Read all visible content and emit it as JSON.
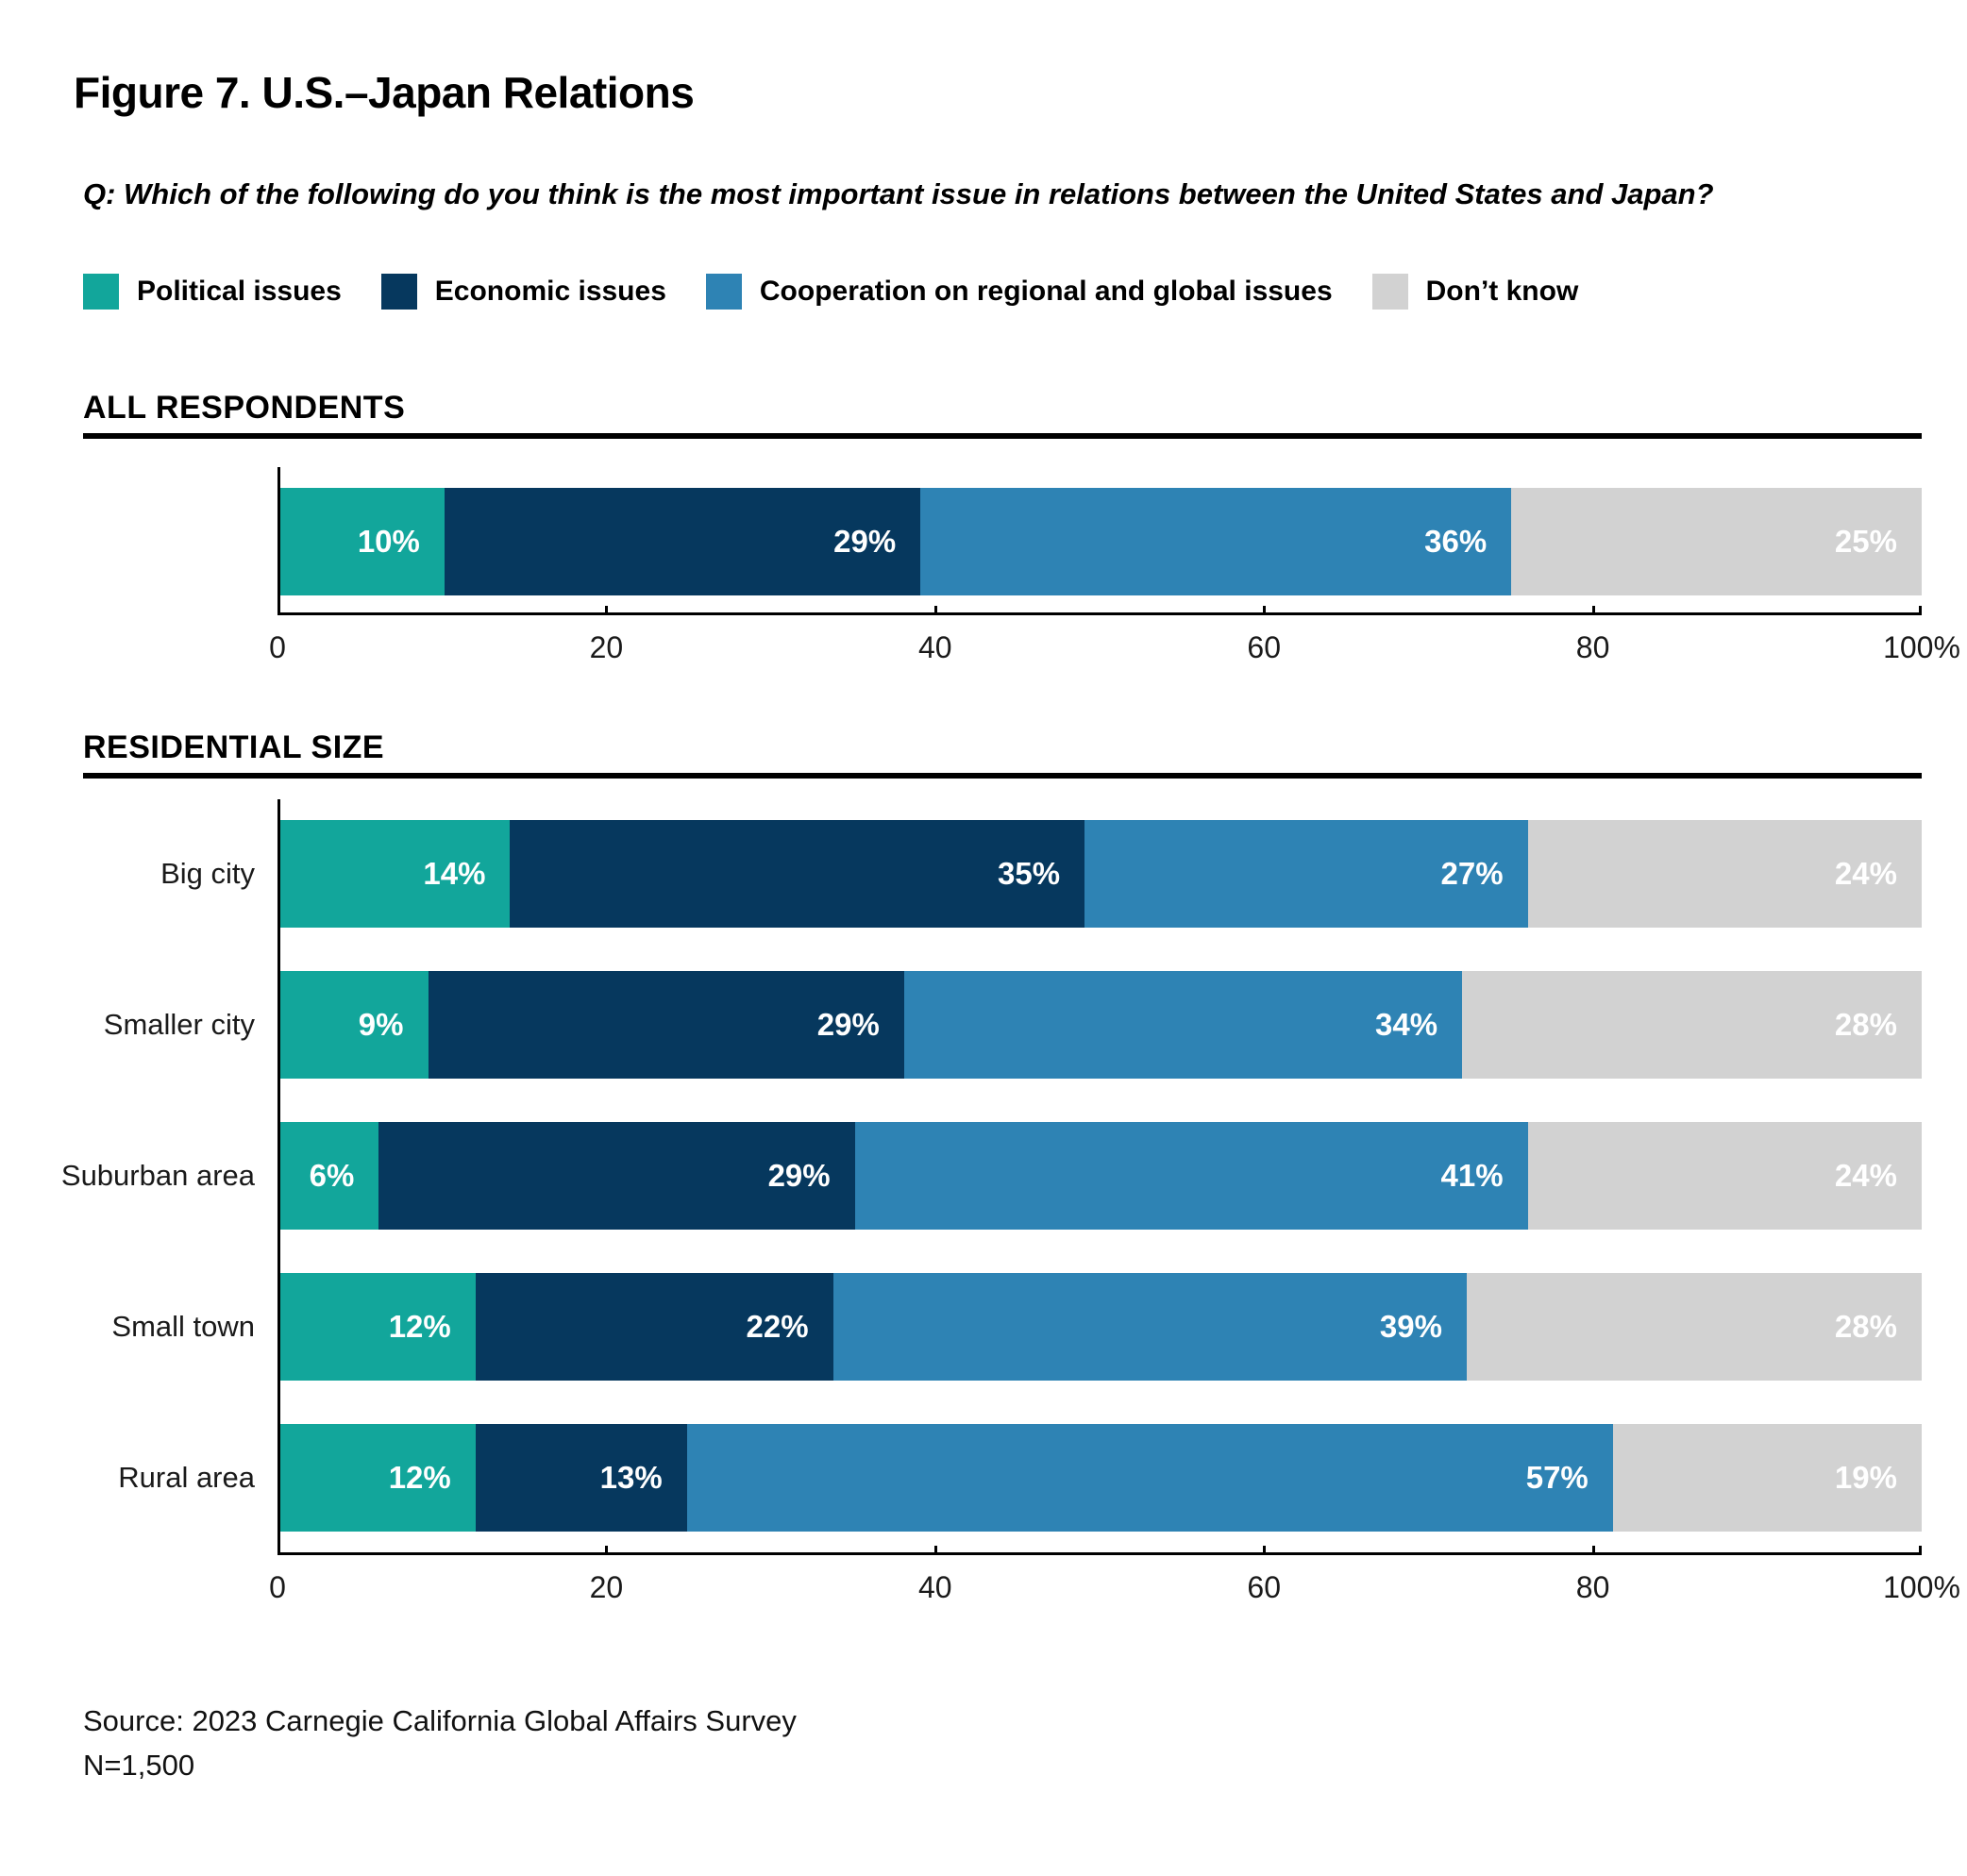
{
  "title": "Figure 7. U.S.–Japan Relations",
  "question": "Q: Which of the following do you think is the most important issue in relations between the United States and Japan?",
  "colors": {
    "political": "#12A69B",
    "economic": "#06385E",
    "cooperation": "#2E83B4",
    "dont_know": "#D2D2D2",
    "rule": "#000000"
  },
  "legend": [
    {
      "label": "Political issues",
      "color": "#12A69B"
    },
    {
      "label": "Economic issues",
      "color": "#06385E"
    },
    {
      "label": "Cooperation on regional and global issues",
      "color": "#2E83B4"
    },
    {
      "label": "Don’t know",
      "color": "#D2D2D2"
    }
  ],
  "chart_data": [
    {
      "type": "bar",
      "stacked": true,
      "orientation": "horizontal",
      "section": "ALL RESPONDENTS",
      "categories": [
        ""
      ],
      "series": [
        {
          "name": "Political issues",
          "color": "#12A69B",
          "values": [
            10
          ]
        },
        {
          "name": "Economic issues",
          "color": "#06385E",
          "values": [
            29
          ]
        },
        {
          "name": "Cooperation on regional and global issues",
          "color": "#2E83B4",
          "values": [
            36
          ]
        },
        {
          "name": "Don’t know",
          "color": "#D2D2D2",
          "values": [
            25
          ]
        }
      ],
      "xlim": [
        0,
        100
      ],
      "x_ticks": [
        "0",
        "20",
        "40",
        "60",
        "80",
        "100%"
      ],
      "value_suffix": "%"
    },
    {
      "type": "bar",
      "stacked": true,
      "orientation": "horizontal",
      "section": "RESIDENTIAL SIZE",
      "categories": [
        "Big city",
        "Smaller city",
        "Suburban area",
        "Small town",
        "Rural area"
      ],
      "series": [
        {
          "name": "Political issues",
          "color": "#12A69B",
          "values": [
            14,
            9,
            6,
            12,
            12
          ]
        },
        {
          "name": "Economic issues",
          "color": "#06385E",
          "values": [
            35,
            29,
            29,
            22,
            13
          ]
        },
        {
          "name": "Cooperation on regional and global issues",
          "color": "#2E83B4",
          "values": [
            27,
            34,
            41,
            39,
            57
          ]
        },
        {
          "name": "Don’t know",
          "color": "#D2D2D2",
          "values": [
            24,
            28,
            24,
            28,
            19
          ]
        }
      ],
      "xlim": [
        0,
        100
      ],
      "x_ticks": [
        "0",
        "20",
        "40",
        "60",
        "80",
        "100%"
      ],
      "value_suffix": "%"
    }
  ],
  "source": {
    "line1": "Source: 2023 Carnegie California Global Affairs Survey",
    "line2": "N=1,500"
  }
}
